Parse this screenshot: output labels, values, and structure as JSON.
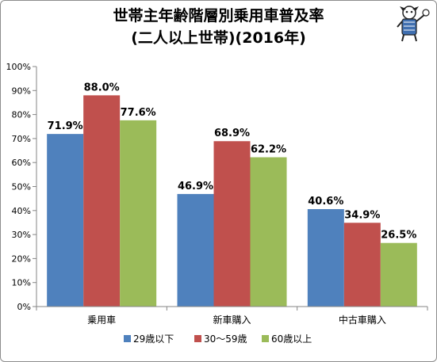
{
  "chart_data": {
    "type": "bar",
    "title": [
      "世帯主年齢階層別乗用車普及率",
      "(二人以上世帯)(2016年)"
    ],
    "categories": [
      "乗用車",
      "新車購入",
      "中古車購入"
    ],
    "series": [
      {
        "name": "29歳以下",
        "color": "#4f81bd",
        "values": [
          71.9,
          46.9,
          40.6
        ]
      },
      {
        "name": "30～59歳",
        "color": "#c0504d",
        "values": [
          88.0,
          68.9,
          34.9
        ]
      },
      {
        "name": "60歳以上",
        "color": "#9bbb59",
        "values": [
          77.6,
          62.2,
          26.5
        ]
      }
    ],
    "value_suffix": "%",
    "ylim": [
      0,
      100
    ],
    "yticks": [
      0,
      10,
      20,
      30,
      40,
      50,
      60,
      70,
      80,
      90,
      100
    ],
    "ytick_suffix": "%",
    "grid": false,
    "legend": "bottom"
  },
  "mascot_icon": "mascot-figure-icon"
}
